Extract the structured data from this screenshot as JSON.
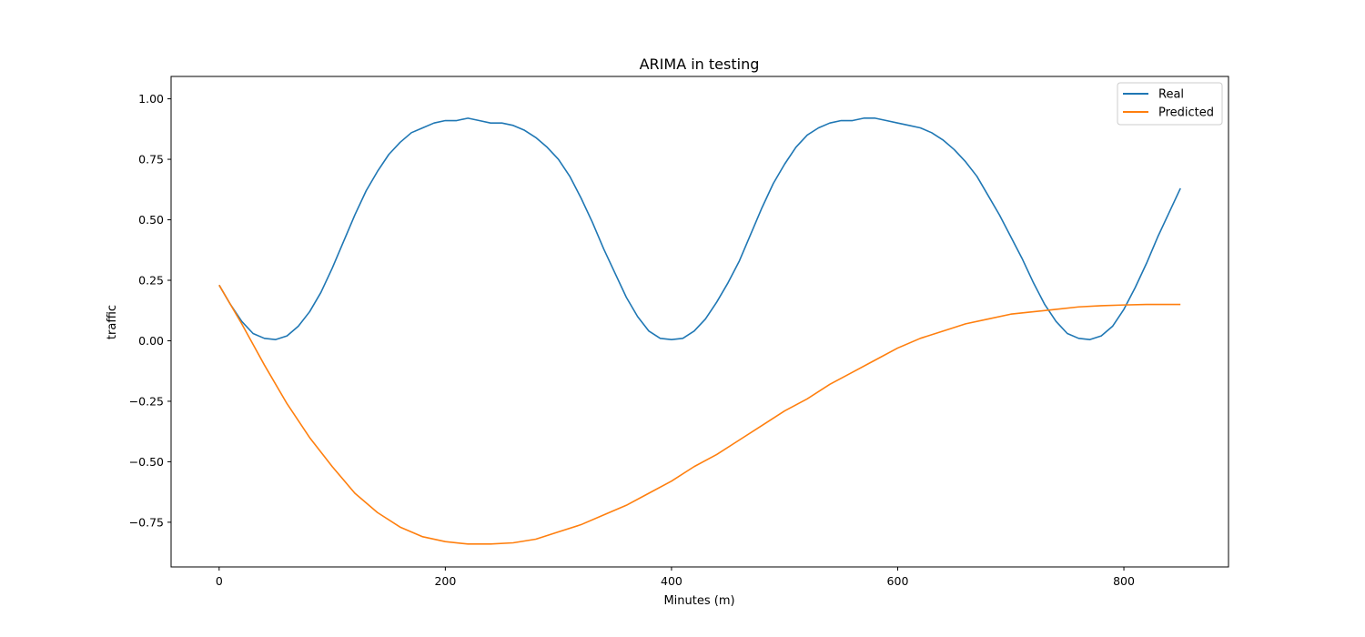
{
  "chart_data": {
    "type": "line",
    "title": "ARIMA in testing",
    "xlabel": "Minutes (m)",
    "ylabel": "traffic",
    "xlim": [
      -42.5,
      892.5
    ],
    "ylim": [
      -0.9347,
      1.0925
    ],
    "xticks": [
      0,
      200,
      400,
      600,
      800
    ],
    "yticks": [
      -0.75,
      -0.5,
      -0.25,
      0.0,
      0.25,
      0.5,
      0.75,
      1.0
    ],
    "ytick_labels": [
      "−0.75",
      "−0.50",
      "−0.25",
      "0.00",
      "0.25",
      "0.50",
      "0.75",
      "1.00"
    ],
    "grid": false,
    "legend": {
      "position": "top-right",
      "entries": [
        "Real",
        "Predicted"
      ]
    },
    "series": [
      {
        "name": "Real",
        "color": "#1f77b4",
        "x": [
          0,
          10,
          20,
          30,
          40,
          50,
          60,
          70,
          80,
          90,
          100,
          110,
          120,
          130,
          140,
          150,
          160,
          170,
          180,
          190,
          200,
          210,
          220,
          230,
          240,
          250,
          260,
          270,
          280,
          290,
          300,
          310,
          320,
          330,
          340,
          350,
          360,
          370,
          380,
          390,
          400,
          410,
          420,
          430,
          440,
          450,
          460,
          470,
          480,
          490,
          500,
          510,
          520,
          530,
          540,
          550,
          560,
          570,
          580,
          590,
          600,
          610,
          620,
          630,
          640,
          650,
          660,
          670,
          680,
          690,
          700,
          710,
          720,
          730,
          740,
          750,
          760,
          770,
          780,
          790,
          800,
          810,
          820,
          830,
          840,
          850
        ],
        "y": [
          0.23,
          0.15,
          0.08,
          0.03,
          0.01,
          0.005,
          0.02,
          0.06,
          0.12,
          0.2,
          0.3,
          0.41,
          0.52,
          0.62,
          0.7,
          0.77,
          0.82,
          0.86,
          0.88,
          0.9,
          0.91,
          0.91,
          0.92,
          0.91,
          0.9,
          0.9,
          0.89,
          0.87,
          0.84,
          0.8,
          0.75,
          0.68,
          0.59,
          0.49,
          0.38,
          0.28,
          0.18,
          0.1,
          0.04,
          0.01,
          0.005,
          0.01,
          0.04,
          0.09,
          0.16,
          0.24,
          0.33,
          0.44,
          0.55,
          0.65,
          0.73,
          0.8,
          0.85,
          0.88,
          0.9,
          0.91,
          0.91,
          0.92,
          0.92,
          0.91,
          0.9,
          0.89,
          0.88,
          0.86,
          0.83,
          0.79,
          0.74,
          0.68,
          0.6,
          0.52,
          0.43,
          0.34,
          0.24,
          0.15,
          0.08,
          0.03,
          0.01,
          0.005,
          0.02,
          0.06,
          0.13,
          0.22,
          0.32,
          0.43,
          0.53,
          0.63
        ]
      },
      {
        "name": "Predicted",
        "color": "#ff7f0e",
        "x": [
          0,
          20,
          40,
          60,
          80,
          100,
          120,
          140,
          160,
          180,
          200,
          220,
          240,
          260,
          280,
          300,
          320,
          340,
          360,
          380,
          400,
          420,
          440,
          460,
          480,
          500,
          520,
          540,
          560,
          580,
          600,
          620,
          640,
          660,
          680,
          700,
          720,
          740,
          760,
          780,
          800,
          820,
          850
        ],
        "y": [
          0.23,
          0.07,
          -0.1,
          -0.26,
          -0.4,
          -0.52,
          -0.63,
          -0.71,
          -0.77,
          -0.81,
          -0.83,
          -0.84,
          -0.84,
          -0.835,
          -0.82,
          -0.79,
          -0.76,
          -0.72,
          -0.68,
          -0.63,
          -0.58,
          -0.52,
          -0.47,
          -0.41,
          -0.35,
          -0.29,
          -0.24,
          -0.18,
          -0.13,
          -0.08,
          -0.03,
          0.01,
          0.04,
          0.07,
          0.09,
          0.11,
          0.12,
          0.13,
          0.14,
          0.145,
          0.148,
          0.15,
          0.15
        ]
      }
    ]
  }
}
